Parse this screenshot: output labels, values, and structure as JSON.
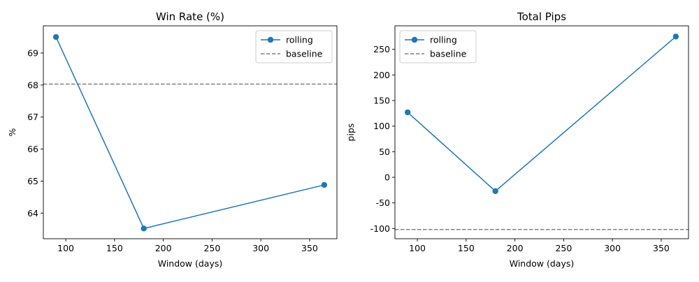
{
  "chart_data": [
    {
      "type": "line",
      "title": "Win Rate (%)",
      "xlabel": "Window (days)",
      "ylabel": "%",
      "x": [
        90,
        180,
        365
      ],
      "xlim": [
        77,
        378
      ],
      "ylim": [
        63.2,
        69.85
      ],
      "xticks": [
        100,
        150,
        200,
        250,
        300,
        350
      ],
      "yticks": [
        64,
        65,
        66,
        67,
        68,
        69
      ],
      "series": [
        {
          "name": "rolling",
          "values": [
            69.5,
            63.52,
            64.88
          ],
          "color": "#1f77b4",
          "marker": "circle"
        }
      ],
      "baseline": {
        "name": "baseline",
        "value": 68.03,
        "color": "#808080",
        "style": "dashed"
      },
      "grid": false,
      "legend": "upper right"
    },
    {
      "type": "line",
      "title": "Total Pips",
      "xlabel": "Window (days)",
      "ylabel": "pips",
      "x": [
        90,
        180,
        365
      ],
      "xlim": [
        77,
        378
      ],
      "ylim": [
        -120,
        296
      ],
      "xticks": [
        100,
        150,
        200,
        250,
        300,
        350
      ],
      "yticks": [
        -100,
        -50,
        0,
        50,
        100,
        150,
        200,
        250
      ],
      "series": [
        {
          "name": "rolling",
          "values": [
            127,
            -27,
            275
          ],
          "color": "#1f77b4",
          "marker": "circle"
        }
      ],
      "baseline": {
        "name": "baseline",
        "value": -102,
        "color": "#808080",
        "style": "dashed"
      },
      "grid": false,
      "legend": "upper left"
    }
  ]
}
